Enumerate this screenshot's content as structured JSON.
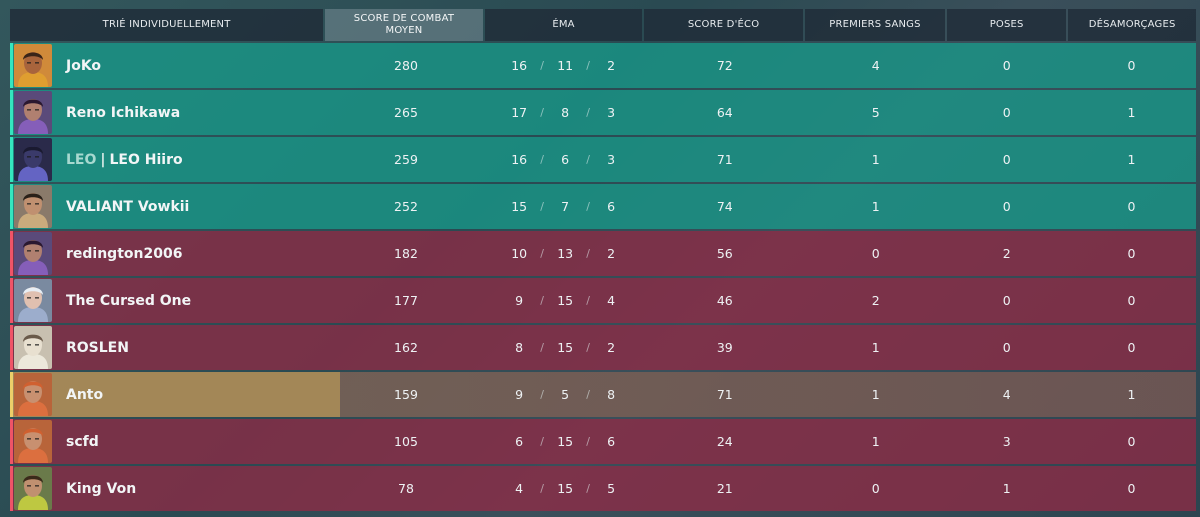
{
  "header": {
    "sort_label": "TRIÉ INDIVIDUELLEMENT",
    "acs_label_line1": "SCORE DE COMBAT",
    "acs_label_line2": "MOYEN",
    "kda_label": "ÉMA",
    "econ_label": "SCORE D'ÉCO",
    "first_bloods_label": "PREMIERS SANGS",
    "plants_label": "POSES",
    "defuses_label": "DÉSAMORÇAGES"
  },
  "colors": {
    "ally": "#16a08e",
    "enemy": "#962844",
    "self": "#aa965a"
  },
  "players": [
    {
      "team": "ally",
      "agent_icon": "agent-raze-icon",
      "tag": "",
      "name": "JoKo",
      "acs": "280",
      "kills": "16",
      "deaths": "11",
      "assists": "2",
      "econ": "72",
      "first_bloods": "4",
      "plants": "0",
      "defuses": "0"
    },
    {
      "team": "ally",
      "agent_icon": "agent-reyna-icon",
      "tag": "",
      "name": "Reno Ichikawa",
      "acs": "265",
      "kills": "17",
      "deaths": "8",
      "assists": "3",
      "econ": "64",
      "first_bloods": "5",
      "plants": "0",
      "defuses": "1"
    },
    {
      "team": "ally",
      "agent_icon": "agent-omen-icon",
      "tag": "LEO",
      "name": "LEO Hiiro",
      "acs": "259",
      "kills": "16",
      "deaths": "6",
      "assists": "3",
      "econ": "71",
      "first_bloods": "1",
      "plants": "0",
      "defuses": "1"
    },
    {
      "team": "ally",
      "agent_icon": "agent-chamber-icon",
      "tag": "",
      "name": "VALIANT Vowkii",
      "acs": "252",
      "kills": "15",
      "deaths": "7",
      "assists": "6",
      "econ": "74",
      "first_bloods": "1",
      "plants": "0",
      "defuses": "0"
    },
    {
      "team": "enemy",
      "agent_icon": "agent-reyna-icon",
      "tag": "",
      "name": "redington2006",
      "acs": "182",
      "kills": "10",
      "deaths": "13",
      "assists": "2",
      "econ": "56",
      "first_bloods": "0",
      "plants": "2",
      "defuses": "0"
    },
    {
      "team": "enemy",
      "agent_icon": "agent-jett-icon",
      "tag": "",
      "name": "The Cursed One",
      "acs": "177",
      "kills": "9",
      "deaths": "15",
      "assists": "4",
      "econ": "46",
      "first_bloods": "2",
      "plants": "0",
      "defuses": "0"
    },
    {
      "team": "enemy",
      "agent_icon": "agent-cypher-icon",
      "tag": "",
      "name": "ROSLEN",
      "acs": "162",
      "kills": "8",
      "deaths": "15",
      "assists": "2",
      "econ": "39",
      "first_bloods": "1",
      "plants": "0",
      "defuses": "0"
    },
    {
      "team": "self",
      "agent_icon": "agent-sova-icon",
      "tag": "",
      "name": "Anto",
      "acs": "159",
      "kills": "9",
      "deaths": "5",
      "assists": "8",
      "econ": "71",
      "first_bloods": "1",
      "plants": "4",
      "defuses": "1"
    },
    {
      "team": "enemy",
      "agent_icon": "agent-sova-icon",
      "tag": "",
      "name": "scfd",
      "acs": "105",
      "kills": "6",
      "deaths": "15",
      "assists": "6",
      "econ": "24",
      "first_bloods": "1",
      "plants": "3",
      "defuses": "0"
    },
    {
      "team": "enemy",
      "agent_icon": "agent-killjoy-icon",
      "tag": "",
      "name": "King Von",
      "acs": "78",
      "kills": "4",
      "deaths": "15",
      "assists": "5",
      "econ": "21",
      "first_bloods": "0",
      "plants": "1",
      "defuses": "0"
    }
  ]
}
